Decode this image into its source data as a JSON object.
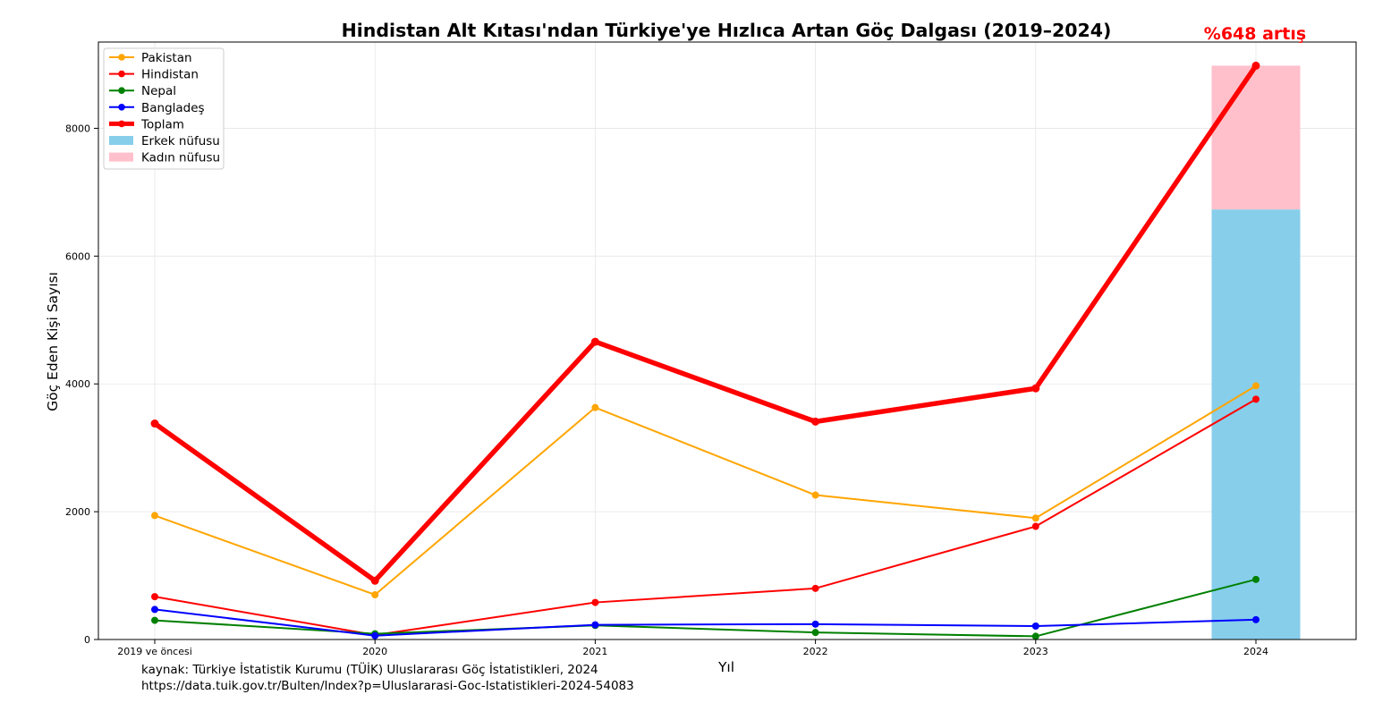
{
  "chart_data": {
    "type": "line",
    "title": "Hindistan Alt Kıtası'ndan Türkiye'ye Hızlıca Artan Göç Dalgası (2019–2024)",
    "xlabel": "Yıl",
    "ylabel": "Göç Eden Kişi Sayısı",
    "categories": [
      "2019 ve öncesi",
      "2020",
      "2021",
      "2022",
      "2023",
      "2024"
    ],
    "yticks": [
      "0",
      "2000",
      "4000",
      "6000",
      "8000"
    ],
    "ylim": [
      0,
      9350
    ],
    "grid": true,
    "legend_position": "top-left",
    "series": [
      {
        "name": "Pakistan",
        "color": "#ffa500",
        "values": [
          1940,
          700,
          3630,
          2260,
          1900,
          3970
        ]
      },
      {
        "name": "Hindistan",
        "color": "#ff0000",
        "values": [
          670,
          70,
          580,
          800,
          1770,
          3760
        ]
      },
      {
        "name": "Nepal",
        "color": "#008000",
        "values": [
          300,
          90,
          220,
          110,
          50,
          940
        ]
      },
      {
        "name": "Bangladeş",
        "color": "#0000ff",
        "values": [
          470,
          60,
          230,
          240,
          210,
          310
        ]
      },
      {
        "name": "Toplam",
        "color": "#ff0000",
        "values": [
          3380,
          920,
          4660,
          3410,
          3930,
          8980
        ]
      }
    ],
    "stacked_bar": {
      "category": "2024",
      "segments": [
        {
          "name": "Erkek nüfusu",
          "color": "#87ceeb",
          "value": 6730
        },
        {
          "name": "Kadın nüfusu",
          "color": "#ffc0cb",
          "value": 2250
        }
      ]
    },
    "annotation": {
      "text": "%648 artış",
      "color": "#ff0000"
    }
  },
  "source": {
    "line1": "kaynak: Türkiye İstatistik Kurumu (TÜİK) Uluslararası Göç İstatistikleri, 2024",
    "line2": "https://data.tuik.gov.tr/Bulten/Index?p=Uluslararasi-Goc-Istatistikleri-2024-54083"
  }
}
